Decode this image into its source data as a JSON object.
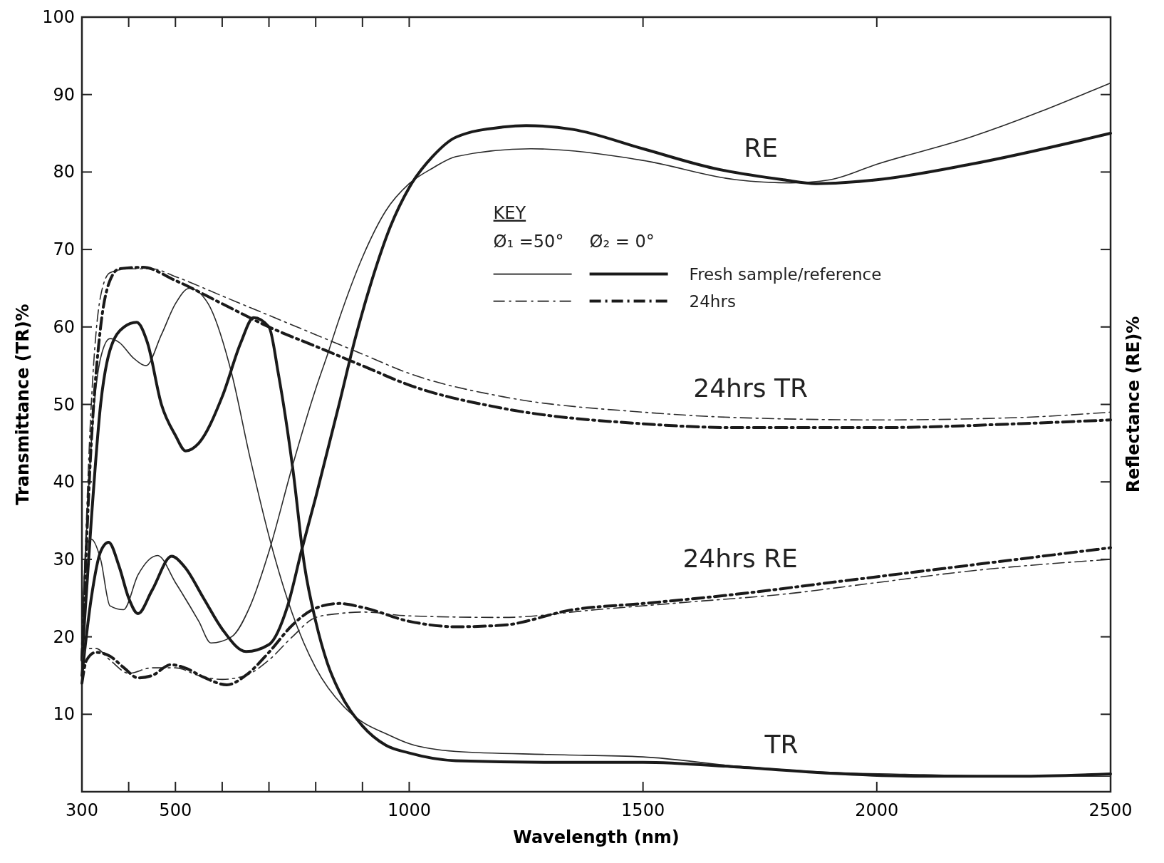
{
  "chart_data": {
    "type": "line",
    "xlabel": "Wavelength (nm)",
    "ylabel": "Transmittance (TR)%",
    "y2label": "Reflectance (RE)%",
    "xlim": [
      300,
      2500
    ],
    "ylim": [
      0,
      100
    ],
    "xticks": [
      300,
      {
        "value": 400,
        "label": null
      },
      500,
      {
        "value": 600,
        "label": null
      },
      {
        "value": 700,
        "label": null
      },
      {
        "value": 800,
        "label": null
      },
      {
        "value": 900,
        "label": null
      },
      1000,
      1500,
      2000,
      2500
    ],
    "yticks": [
      10,
      20,
      30,
      40,
      50,
      60,
      70,
      80,
      90,
      100
    ],
    "annotations": [
      "KEY",
      "Ø₁ =50°",
      "Ø₂ = 0°",
      "Fresh sample/reference",
      "24hrs",
      "RE",
      "24hrs TR",
      "24hrs RE",
      "TR"
    ],
    "series": [
      {
        "color": "#2a2a2a",
        "line_style": "solid",
        "x": [
          300,
          320,
          340,
          360,
          380,
          410,
          437,
          470,
          500,
          530,
          570,
          619,
          660,
          704,
          750,
          800,
          860,
          900,
          950,
          1000,
          1100,
          1300,
          1500,
          1700,
          1900,
          2100,
          2300,
          2500
        ],
        "values": [
          20,
          45,
          56,
          58.5,
          58,
          56,
          55,
          59,
          63,
          65,
          63,
          54.3,
          43,
          32.1,
          23,
          16,
          11,
          9,
          7.5,
          6.2,
          5.2,
          4.8,
          4.5,
          3.3,
          2.5,
          2.2,
          2,
          2
        ]
      },
      {
        "color": "#1a1a1a",
        "line_style": "solid",
        "x": [
          300,
          320,
          340,
          360,
          390,
          417,
          440,
          470,
          500,
          522,
          550,
          600,
          640,
          667,
          700,
          720,
          751,
          776,
          800,
          825,
          850,
          900,
          950,
          1000,
          1100,
          1300,
          1500,
          1700,
          1900,
          2100,
          2300,
          2500
        ],
        "values": [
          17,
          35,
          50,
          57,
          60,
          60.6,
          58,
          50,
          46,
          44,
          45,
          51,
          58,
          61.2,
          60,
          54,
          41.7,
          29.2,
          22,
          16.6,
          13,
          8.5,
          6,
          5,
          4,
          3.8,
          3.8,
          3.2,
          2.4,
          2,
          2,
          2.3
        ]
      },
      {
        "color": "#2a2a2a",
        "line_style": "solid",
        "x": [
          300,
          310,
          320,
          340,
          360,
          389,
          420,
          462,
          500,
          550,
          576,
          620,
          660,
          700,
          750,
          800,
          825,
          850,
          900,
          950,
          1000,
          1050,
          1100,
          1260,
          1500,
          1700,
          1815,
          1900,
          2000,
          2200,
          2500
        ],
        "values": [
          20,
          32,
          32.6,
          30,
          24,
          23.5,
          28,
          30.5,
          27,
          22,
          19.2,
          20,
          24,
          31,
          42,
          52,
          56.4,
          61,
          69,
          75,
          78.5,
          80.5,
          82,
          83,
          81.5,
          79,
          78.6,
          79,
          81,
          84.5,
          91.5
        ]
      },
      {
        "color": "#1a1a1a",
        "line_style": "solid",
        "x": [
          300,
          320,
          340,
          357,
          380,
          400,
          420,
          450,
          492,
          520,
          560,
          600,
          651,
          700,
          740,
          770,
          800,
          850,
          884,
          920,
          960,
          1000,
          1050,
          1100,
          1200,
          1250,
          1350,
          1500,
          1650,
          1800,
          1870,
          2000,
          2200,
          2500
        ],
        "values": [
          15,
          25,
          31,
          32.2,
          29,
          25,
          23,
          26,
          30.4,
          29,
          25,
          21,
          18.1,
          19,
          24,
          31.2,
          38,
          50,
          58.4,
          66,
          73,
          78,
          82,
          84.5,
          85.8,
          86,
          85.5,
          83,
          80.5,
          79,
          78.5,
          79,
          81,
          85
        ]
      },
      {
        "color": "#2a2a2a",
        "line_style": "dashed",
        "x": [
          300,
          320,
          340,
          360,
          400,
          450,
          500,
          600,
          700,
          800,
          900,
          1000,
          1200,
          1500,
          1700,
          2000,
          2300,
          2500
        ],
        "values": [
          18,
          50,
          64,
          67,
          67.5,
          67.5,
          66.5,
          64,
          61.5,
          59,
          56.5,
          54,
          51,
          49,
          48.3,
          48,
          48.3,
          49
        ]
      },
      {
        "color": "#1a1a1a",
        "line_style": "dashed",
        "x": [
          300,
          320,
          340,
          360,
          380,
          430,
          500,
          600,
          700,
          800,
          900,
          1000,
          1200,
          1500,
          1700,
          2000,
          2300,
          2500
        ],
        "values": [
          17,
          45,
          60,
          66,
          67.5,
          67.7,
          66,
          63,
          60,
          57.5,
          55,
          52.5,
          49.5,
          47.5,
          47,
          47,
          47.5,
          48
        ]
      },
      {
        "color": "#2a2a2a",
        "line_style": "dashed",
        "x": [
          300,
          310,
          330,
          360,
          400,
          450,
          500,
          550,
          600,
          650,
          700,
          750,
          800,
          850,
          900,
          1000,
          1200,
          1400,
          1600,
          1800,
          2000,
          2200,
          2500
        ],
        "values": [
          17,
          18.5,
          18.5,
          17,
          15.3,
          16,
          16,
          15,
          14.5,
          15,
          17,
          20,
          22.5,
          23,
          23.2,
          22.7,
          22.5,
          23.5,
          24.5,
          25.5,
          27,
          28.5,
          30
        ]
      },
      {
        "color": "#1a1a1a",
        "line_style": "dashed",
        "x": [
          300,
          310,
          330,
          360,
          390,
          420,
          450,
          490,
          520,
          560,
          610,
          650,
          700,
          750,
          800,
          850,
          900,
          1000,
          1100,
          1200,
          1350,
          1500,
          1700,
          1900,
          2100,
          2300,
          2500
        ],
        "values": [
          14,
          17,
          18,
          17.5,
          16,
          14.7,
          15,
          16.4,
          16,
          14.8,
          13.8,
          15,
          18,
          21.5,
          23.7,
          24.3,
          23.8,
          22,
          21.3,
          21.5,
          23.5,
          24.3,
          25.5,
          27,
          28.5,
          30,
          31.5
        ]
      }
    ]
  }
}
